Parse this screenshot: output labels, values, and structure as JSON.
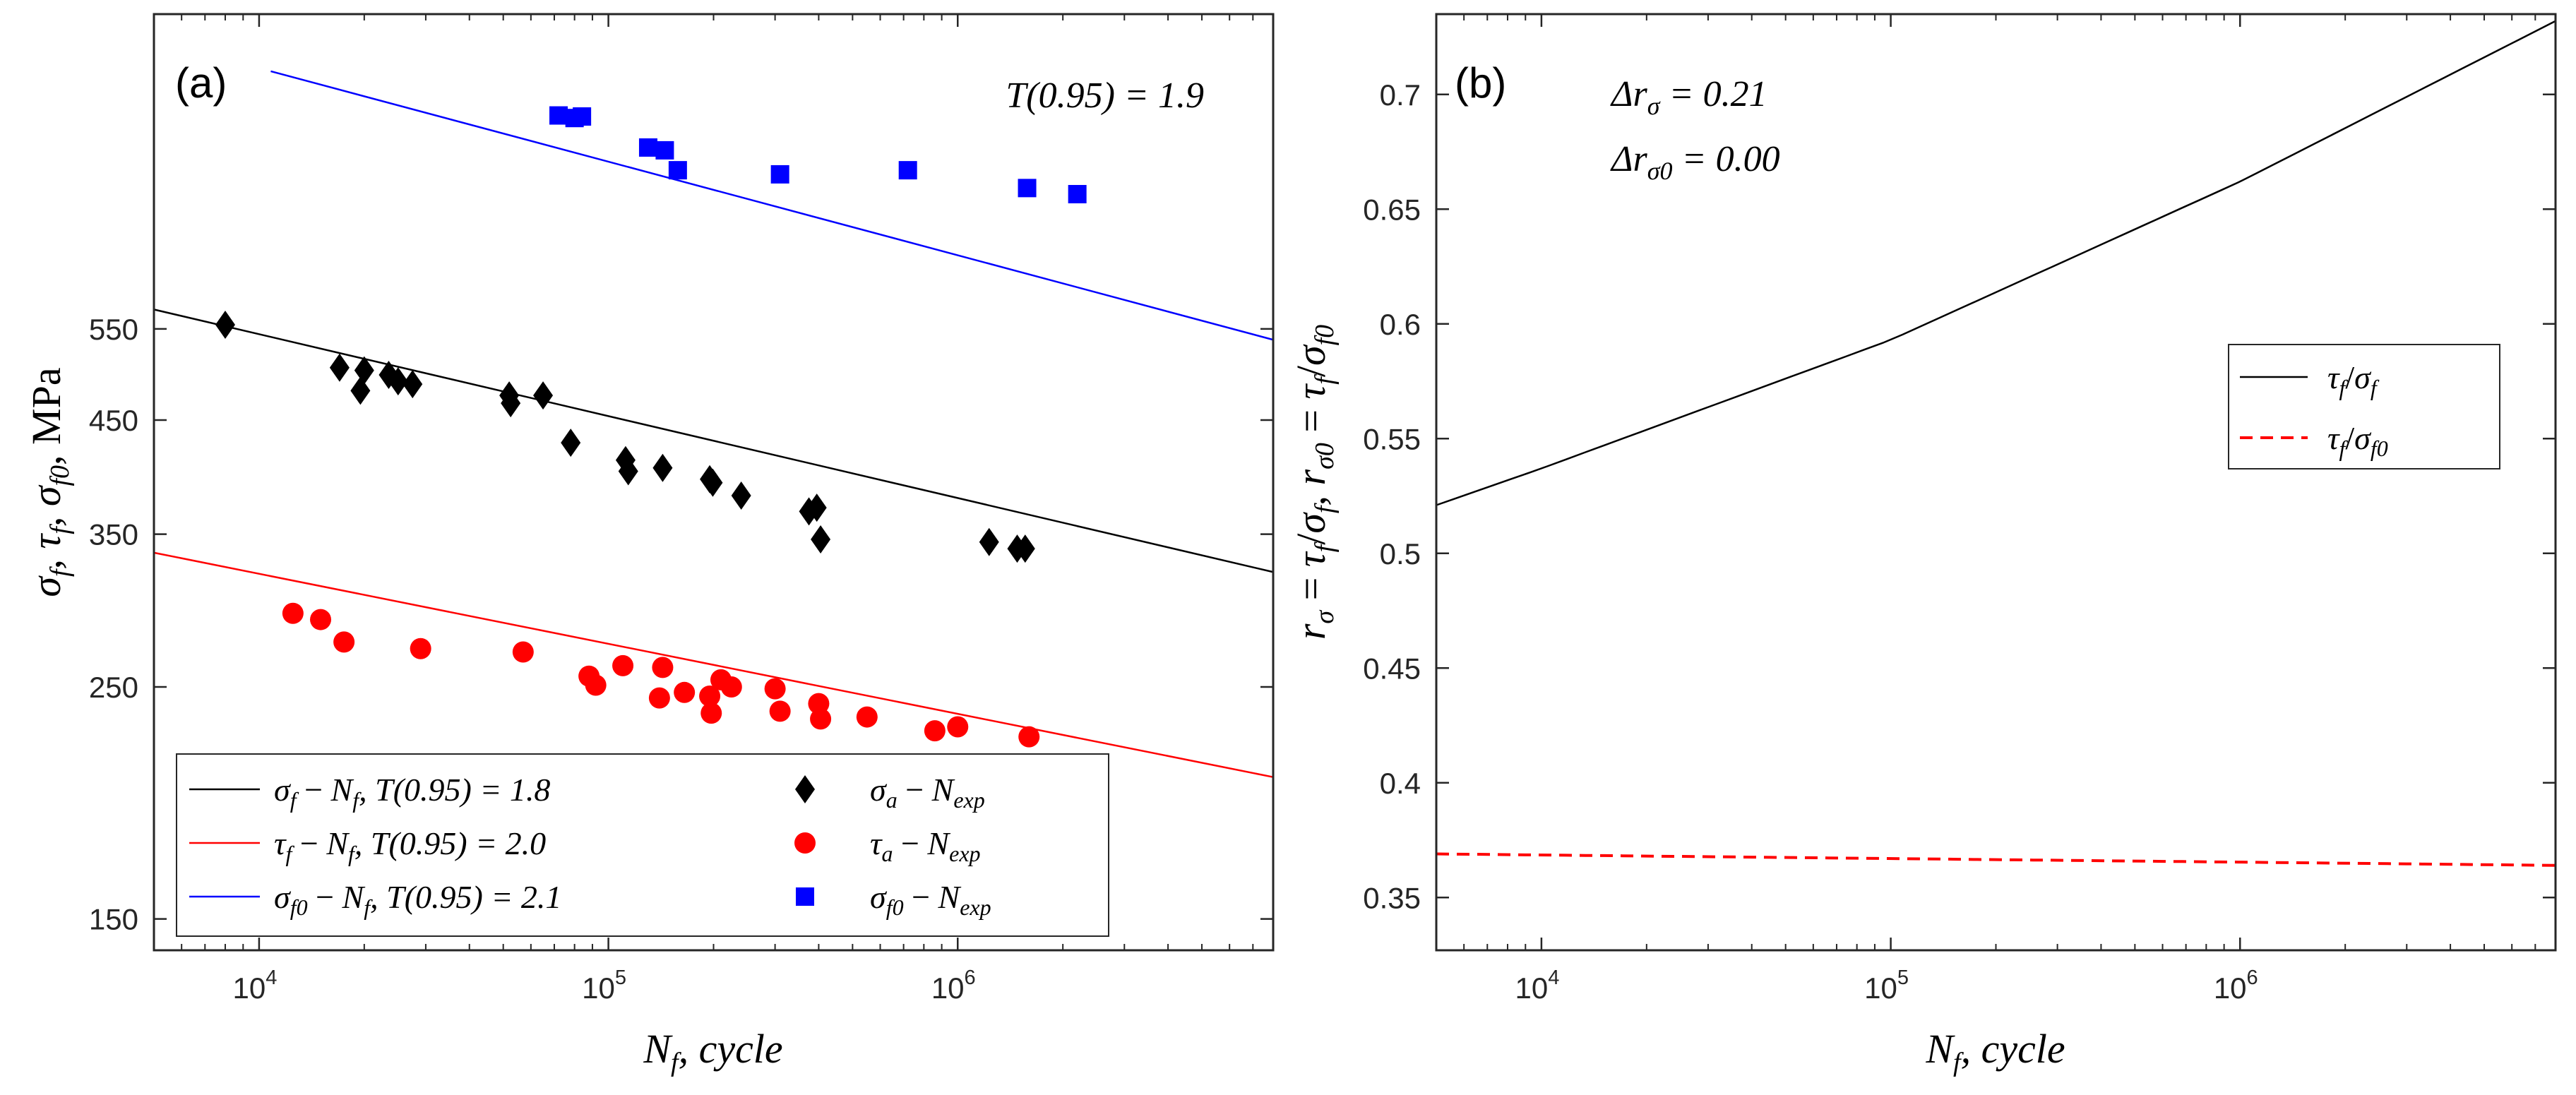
{
  "chart_data": [
    {
      "type": "scatter",
      "panel_label": "(a)",
      "annotation": "T(0.95) = 1.9",
      "xlabel": "N_f, cycle",
      "ylabel": "σ_f, τ_f, σ_f0, MPa",
      "xscale": "log",
      "yscale": "log",
      "xlim": [
        5000,
        8000000
      ],
      "ylim": [
        140,
        1100
      ],
      "x_ticks": [
        {
          "value": 10000,
          "base": "10",
          "exp": "4"
        },
        {
          "value": 100000,
          "base": "10",
          "exp": "5"
        },
        {
          "value": 1000000,
          "base": "10",
          "exp": "6"
        }
      ],
      "y_ticks": [
        {
          "value": 150,
          "label": "150"
        },
        {
          "value": 250,
          "label": "250"
        },
        {
          "value": 350,
          "label": "350"
        },
        {
          "value": 450,
          "label": "450"
        },
        {
          "value": 550,
          "label": "550"
        }
      ],
      "legend_position": "bottom-left",
      "fit_lines": [
        {
          "name": "σ_f − N_f, T(0.95) = 1.8",
          "color": "#000000",
          "x": [
            5000,
            8000000
          ],
          "y": [
            574,
            322
          ]
        },
        {
          "name": "τ_f − N_f, T(0.95) = 2.0",
          "color": "#ff0000",
          "x": [
            5000,
            8000000
          ],
          "y": [
            336,
            205
          ]
        },
        {
          "name": "σ_f0 − N_f, T(0.95) = 2.1",
          "color": "#0000ff",
          "x": [
            10800,
            8000000
          ],
          "y": [
            970,
            537
          ]
        }
      ],
      "series": [
        {
          "name": "σ_a − N_exp",
          "marker": "diamond",
          "color": "#000000",
          "points": [
            [
              8000,
              555
            ],
            [
              17000,
              505
            ],
            [
              20000,
              502
            ],
            [
              19500,
              480
            ],
            [
              23500,
              497
            ],
            [
              25000,
              490
            ],
            [
              27500,
              487
            ],
            [
              52000,
              475
            ],
            [
              52500,
              467
            ],
            [
              65000,
              475
            ],
            [
              78000,
              428
            ],
            [
              112000,
              412
            ],
            [
              114000,
              402
            ],
            [
              143000,
              405
            ],
            [
              195000,
              395
            ],
            [
              199000,
              392
            ],
            [
              240000,
              381
            ],
            [
              375000,
              368
            ],
            [
              395000,
              371
            ],
            [
              405000,
              346
            ],
            [
              1230000,
              344
            ],
            [
              1480000,
              339
            ],
            [
              1560000,
              339
            ]
          ]
        },
        {
          "name": "τ_a − N_exp",
          "marker": "circle",
          "color": "#ff0000",
          "points": [
            [
              12500,
              294
            ],
            [
              15000,
              290
            ],
            [
              17500,
              276
            ],
            [
              29000,
              272
            ],
            [
              57000,
              270
            ],
            [
              88000,
              256
            ],
            [
              92000,
              251
            ],
            [
              110000,
              262
            ],
            [
              140000,
              244
            ],
            [
              143000,
              261
            ],
            [
              165000,
              247
            ],
            [
              195000,
              245
            ],
            [
              197000,
              236
            ],
            [
              210000,
              254
            ],
            [
              225000,
              250
            ],
            [
              300000,
              249
            ],
            [
              310000,
              237
            ],
            [
              400000,
              241
            ],
            [
              405000,
              233
            ],
            [
              550000,
              234
            ],
            [
              860000,
              227
            ],
            [
              1000000,
              229
            ],
            [
              1600000,
              224
            ]
          ]
        },
        {
          "name": "σ_f0 − N_exp",
          "marker": "square",
          "color": "#0000ff",
          "points": [
            [
              72000,
              880
            ],
            [
              80000,
              875
            ],
            [
              84000,
              878
            ],
            [
              130000,
              820
            ],
            [
              145000,
              815
            ],
            [
              158000,
              780
            ],
            [
              310000,
              773
            ],
            [
              720000,
              780
            ],
            [
              1580000,
              750
            ],
            [
              2200000,
              740
            ]
          ]
        }
      ]
    },
    {
      "type": "line",
      "panel_label": "(b)",
      "annotations": [
        "Δr_σ = 0.21",
        "Δr_σ0 = 0.00"
      ],
      "xlabel": "N_f, cycle",
      "ylabel": "r_σ = τ_f / σ_f, r_σ0 = τ_f / σ_f0",
      "xscale": "log",
      "xlim": [
        5000,
        8000000
      ],
      "ylim": [
        0.327,
        0.735
      ],
      "x_ticks": [
        {
          "value": 10000,
          "base": "10",
          "exp": "4"
        },
        {
          "value": 100000,
          "base": "10",
          "exp": "5"
        },
        {
          "value": 1000000,
          "base": "10",
          "exp": "6"
        }
      ],
      "y_ticks": [
        {
          "value": 0.35,
          "label": "0.35"
        },
        {
          "value": 0.4,
          "label": "0.4"
        },
        {
          "value": 0.45,
          "label": "0.45"
        },
        {
          "value": 0.5,
          "label": "0.5"
        },
        {
          "value": 0.55,
          "label": "0.55"
        },
        {
          "value": 0.6,
          "label": "0.6"
        },
        {
          "value": 0.65,
          "label": "0.65"
        },
        {
          "value": 0.7,
          "label": "0.7"
        }
      ],
      "legend_position": "center-right",
      "series": [
        {
          "name": "τ_f / σ_f",
          "color": "#000000",
          "style": "solid",
          "x": [
            5000,
            10000,
            100000,
            1000000,
            8000000
          ],
          "y": [
            0.521,
            0.537,
            0.593,
            0.662,
            0.732
          ]
        },
        {
          "name": "τ_f / σ_f0",
          "color": "#ff0000",
          "style": "dashed",
          "x": [
            5000,
            8000000
          ],
          "y": [
            0.369,
            0.364
          ]
        }
      ]
    }
  ]
}
